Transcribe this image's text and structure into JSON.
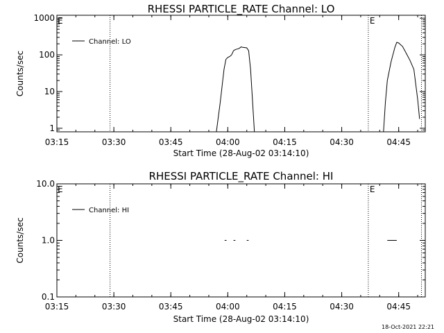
{
  "footer": {
    "timestamp": "18-Oct-2021 22:21"
  },
  "chart_data": [
    {
      "type": "line",
      "title": "RHESSI PARTICLE_RATE Channel: LO",
      "xlabel": "Start Time (28-Aug-02 03:14:10)",
      "ylabel": "Counts/sec",
      "yscale": "log",
      "ylim": [
        0.8,
        1200
      ],
      "xlim": [
        "03:15",
        "04:52"
      ],
      "x_ticks": [
        "03:15",
        "03:30",
        "03:45",
        "04:00",
        "04:15",
        "04:30",
        "04:45"
      ],
      "y_ticks": [
        "1",
        "10",
        "100",
        "1000"
      ],
      "markers": [
        {
          "time": "03:29",
          "label": ""
        },
        {
          "time": "04:37",
          "label": "E"
        },
        {
          "time": "04:51",
          "label": ""
        }
      ],
      "corner_marks": [
        "E"
      ],
      "legend": {
        "position": "top-left",
        "entries": [
          "Channel: LO"
        ]
      },
      "series": [
        {
          "name": "Channel: LO",
          "segments": [
            [
              [
                "03:57",
                0.8
              ],
              [
                "03:58",
                5
              ],
              [
                "03:59",
                40
              ],
              [
                "03:59:30",
                75
              ],
              [
                "04:00",
                85
              ],
              [
                "04:00:30",
                90
              ],
              [
                "04:01",
                100
              ],
              [
                "04:01:30",
                130
              ],
              [
                "04:02",
                140
              ],
              [
                "04:03",
                150
              ],
              [
                "04:03:30",
                165
              ],
              [
                "04:04",
                160
              ],
              [
                "04:05",
                155
              ],
              [
                "04:05:30",
                130
              ],
              [
                "04:06",
                40
              ],
              [
                "04:06:30",
                6
              ],
              [
                "04:07",
                0.8
              ]
            ],
            [
              [
                "04:41",
                0.8
              ],
              [
                "04:41:30",
                5
              ],
              [
                "04:42",
                20
              ],
              [
                "04:43",
                65
              ],
              [
                "04:44",
                160
              ],
              [
                "04:44:30",
                220
              ],
              [
                "04:45",
                210
              ],
              [
                "04:46",
                170
              ],
              [
                "04:47",
                110
              ],
              [
                "04:48",
                70
              ],
              [
                "04:49",
                40
              ],
              [
                "04:50",
                6
              ],
              [
                "04:50:30",
                1.8
              ]
            ]
          ]
        }
      ]
    },
    {
      "type": "line",
      "title": "RHESSI PARTICLE_RATE Channel: HI",
      "xlabel": "Start Time (28-Aug-02 03:14:10)",
      "ylabel": "Counts/sec",
      "yscale": "log",
      "ylim": [
        0.1,
        10
      ],
      "xlim": [
        "03:15",
        "04:52"
      ],
      "x_ticks": [
        "03:15",
        "03:30",
        "03:45",
        "04:00",
        "04:15",
        "04:30",
        "04:45"
      ],
      "y_ticks": [
        "0.1",
        "1.0",
        "10.0"
      ],
      "markers": [
        {
          "time": "03:29",
          "label": ""
        },
        {
          "time": "04:37",
          "label": "E"
        },
        {
          "time": "04:51",
          "label": ""
        }
      ],
      "corner_marks": [
        "E"
      ],
      "legend": {
        "position": "top-left",
        "entries": [
          "Channel: HI"
        ]
      },
      "series": [
        {
          "name": "Channel: HI",
          "segments": [
            [
              [
                "03:59:10",
                1.0
              ],
              [
                "03:59:40",
                1.0
              ]
            ],
            [
              [
                "04:01:30",
                1.0
              ],
              [
                "04:02:00",
                1.0
              ]
            ],
            [
              [
                "04:05:00",
                1.0
              ],
              [
                "04:05:30",
                1.0
              ]
            ],
            [
              [
                "04:42:00",
                1.0
              ],
              [
                "04:44:30",
                1.0
              ]
            ]
          ]
        }
      ]
    }
  ]
}
